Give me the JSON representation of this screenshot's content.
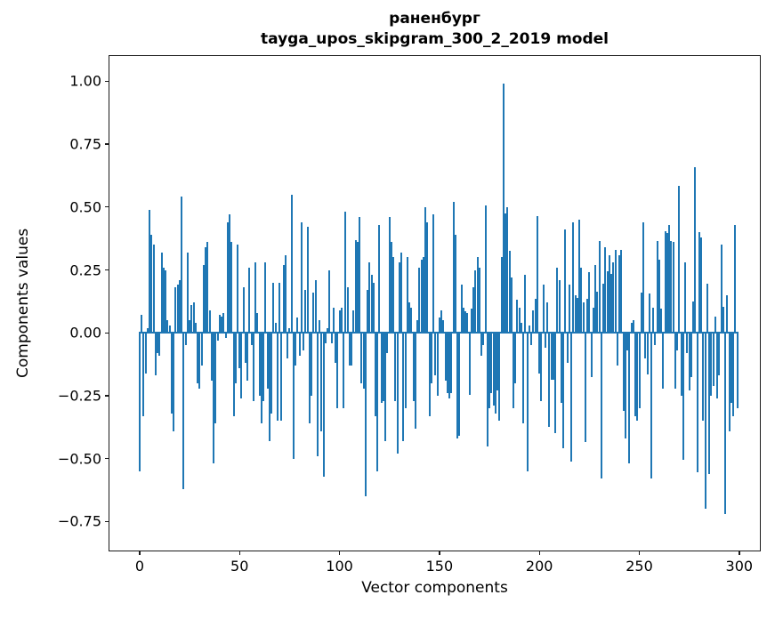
{
  "title": {
    "line1": "раненбург",
    "line2": "tayga_upos_skipgram_300_2_2019 model"
  },
  "chart_data": {
    "type": "bar",
    "title": "раненбург\ntayga_upos_skipgram_300_2_2019 model",
    "xlabel": "Vector components",
    "ylabel": "Components values",
    "bar_color": "#1f77b4",
    "axis_color": "#1a1a1a",
    "grid": false,
    "legend": false,
    "x_ticks": [
      0,
      50,
      100,
      150,
      200,
      250,
      300
    ],
    "y_ticks": [
      1.0,
      0.75,
      0.5,
      0.25,
      0.0,
      -0.25,
      -0.5,
      -0.75
    ],
    "xlim": [
      -15.1,
      311.2
    ],
    "ylim": [
      -0.872,
      1.1
    ],
    "x_description": "component index 0..299",
    "values": [
      -0.55,
      0.07,
      -0.33,
      -0.16,
      0.02,
      0.49,
      0.39,
      0.35,
      -0.17,
      -0.08,
      -0.09,
      0.32,
      0.26,
      0.25,
      0.05,
      0.03,
      -0.32,
      -0.39,
      0.18,
      0.19,
      0.21,
      0.54,
      -0.62,
      -0.05,
      0.32,
      0.05,
      0.11,
      0.12,
      0.04,
      -0.2,
      -0.22,
      -0.13,
      0.27,
      0.34,
      0.36,
      0.09,
      -0.19,
      -0.52,
      -0.36,
      -0.03,
      0.07,
      0.065,
      0.08,
      -0.02,
      0.44,
      0.47,
      0.36,
      -0.33,
      -0.2,
      0.35,
      -0.14,
      -0.26,
      0.18,
      -0.12,
      -0.19,
      0.26,
      -0.05,
      -0.27,
      0.28,
      0.08,
      -0.25,
      -0.36,
      -0.27,
      0.28,
      -0.22,
      -0.43,
      -0.32,
      0.2,
      0.04,
      -0.35,
      0.2,
      -0.35,
      0.27,
      0.31,
      -0.1,
      0.02,
      0.55,
      -0.5,
      -0.13,
      0.06,
      -0.09,
      0.44,
      -0.07,
      0.17,
      0.42,
      -0.36,
      -0.25,
      0.16,
      0.21,
      -0.49,
      0.05,
      -0.39,
      -0.57,
      -0.04,
      0.02,
      0.25,
      -0.04,
      0.1,
      -0.12,
      -0.3,
      0.09,
      0.1,
      -0.3,
      0.48,
      0.18,
      -0.13,
      -0.13,
      0.09,
      0.37,
      0.36,
      0.46,
      -0.2,
      -0.22,
      -0.65,
      0.17,
      0.28,
      0.23,
      0.2,
      -0.33,
      -0.55,
      0.43,
      -0.28,
      -0.27,
      -0.43,
      -0.08,
      0.46,
      0.36,
      0.3,
      -0.27,
      -0.48,
      0.28,
      0.32,
      -0.43,
      -0.3,
      0.3,
      0.12,
      0.1,
      -0.27,
      -0.38,
      0.05,
      0.26,
      0.29,
      0.3,
      0.5,
      0.44,
      -0.33,
      -0.2,
      0.47,
      -0.17,
      -0.25,
      0.06,
      0.09,
      0.05,
      -0.19,
      -0.24,
      -0.26,
      -0.24,
      0.52,
      0.39,
      -0.42,
      -0.41,
      0.19,
      0.1,
      0.085,
      0.08,
      -0.245,
      0.095,
      0.18,
      0.25,
      0.3,
      0.26,
      -0.09,
      -0.05,
      0.505,
      -0.45,
      -0.3,
      -0.24,
      -0.29,
      -0.32,
      -0.23,
      -0.35,
      0.3,
      0.99,
      0.475,
      0.5,
      0.325,
      0.22,
      -0.3,
      -0.2,
      0.13,
      0.1,
      0.04,
      -0.36,
      0.23,
      -0.55,
      0.03,
      -0.05,
      0.09,
      0.135,
      0.465,
      -0.16,
      -0.27,
      0.19,
      -0.06,
      0.12,
      -0.375,
      -0.185,
      -0.185,
      -0.4,
      0.26,
      0.21,
      -0.28,
      -0.46,
      0.41,
      -0.12,
      0.19,
      -0.51,
      0.44,
      0.15,
      0.14,
      0.45,
      0.26,
      0.12,
      -0.435,
      0.135,
      0.24,
      -0.175,
      0.1,
      0.27,
      0.165,
      0.365,
      -0.58,
      0.195,
      0.34,
      0.245,
      0.31,
      0.235,
      0.28,
      0.33,
      -0.13,
      0.31,
      0.33,
      -0.31,
      -0.42,
      -0.07,
      -0.52,
      0.04,
      0.05,
      -0.33,
      -0.35,
      -0.3,
      0.16,
      0.44,
      -0.1,
      -0.165,
      0.155,
      -0.58,
      0.1,
      -0.05,
      0.365,
      0.29,
      0.095,
      -0.22,
      0.405,
      0.395,
      0.43,
      0.365,
      0.36,
      -0.22,
      -0.07,
      0.585,
      -0.25,
      -0.505,
      0.28,
      -0.08,
      -0.23,
      -0.175,
      0.125,
      0.66,
      -0.555,
      0.4,
      0.38,
      -0.35,
      -0.7,
      0.195,
      -0.56,
      -0.25,
      -0.21,
      0.065,
      -0.26,
      -0.17,
      0.35,
      0.105,
      -0.72,
      0.148,
      -0.39,
      -0.28,
      -0.33,
      0.43,
      -0.3
    ]
  }
}
